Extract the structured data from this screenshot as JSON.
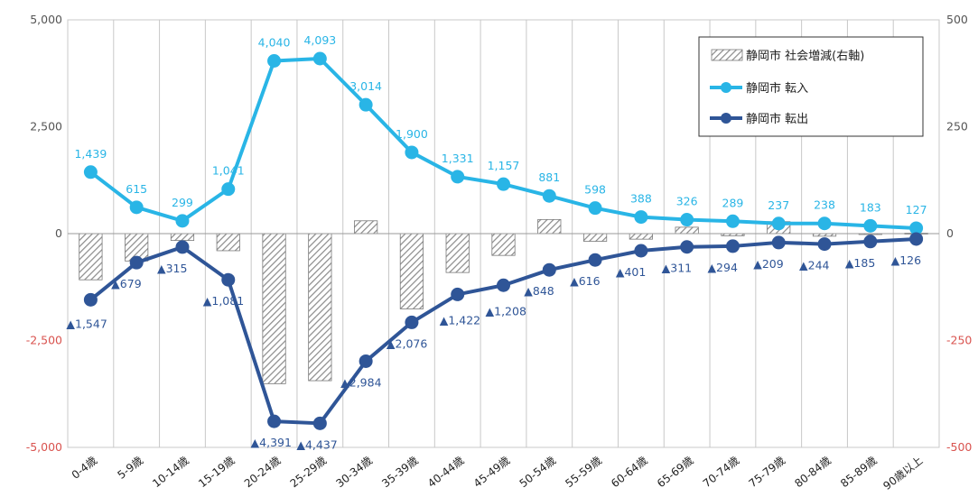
{
  "chart_data": {
    "type": "bar+line",
    "categories": [
      "0-4歳",
      "5-9歳",
      "10-14歳",
      "15-19歳",
      "20-24歳",
      "25-29歳",
      "30-34歳",
      "35-39歳",
      "40-44歳",
      "45-49歳",
      "50-54歳",
      "55-59歳",
      "60-64歳",
      "65-69歳",
      "70-74歳",
      "75-79歳",
      "80-84歳",
      "85-89歳",
      "90歳以上"
    ],
    "left_axis": {
      "ylim": [
        -5000,
        5000
      ],
      "ticks": [
        "5,000",
        "2,500",
        "0",
        "-2,500",
        "-5,000"
      ],
      "tick_values": [
        5000,
        2500,
        0,
        -2500,
        -5000
      ]
    },
    "right_axis": {
      "ylim": [
        -500,
        500
      ],
      "ticks": [
        "500",
        "250",
        "0",
        "-250",
        "-500"
      ],
      "tick_values": [
        500,
        250,
        0,
        -250,
        -500
      ]
    },
    "series": [
      {
        "name": "静岡市 社会増減(右軸)",
        "type": "bar",
        "axis": "right",
        "values": [
          -108,
          -64,
          -16,
          -40,
          -351,
          -344,
          30,
          -176,
          -91,
          -51,
          33,
          -18,
          -13,
          15,
          -5,
          28,
          -6,
          -2,
          1
        ]
      },
      {
        "name": "静岡市 転入",
        "type": "line",
        "axis": "left",
        "color": "#29b5e6",
        "values": [
          1439,
          615,
          299,
          1041,
          4040,
          4093,
          3014,
          1900,
          1331,
          1157,
          881,
          598,
          388,
          326,
          289,
          237,
          238,
          183,
          127
        ],
        "labels": [
          "1,439",
          "615",
          "299",
          "1,041",
          "4,040",
          "4,093",
          "3,014",
          "1,900",
          "1,331",
          "1,157",
          "881",
          "598",
          "388",
          "326",
          "289",
          "237",
          "238",
          "183",
          "127"
        ]
      },
      {
        "name": "静岡市 転出",
        "type": "line",
        "axis": "left",
        "color": "#2f5597",
        "values": [
          -1547,
          -679,
          -315,
          -1081,
          -4391,
          -4437,
          -2984,
          -2076,
          -1422,
          -1208,
          -848,
          -616,
          -401,
          -311,
          -294,
          -209,
          -244,
          -185,
          -126
        ],
        "labels": [
          "▲1,547",
          "▲679",
          "▲315",
          "▲1,081",
          "▲4,391",
          "▲4,437",
          "▲2,984",
          "▲2,076",
          "▲1,422",
          "▲1,208",
          "▲848",
          "▲616",
          "▲401",
          "▲311",
          "▲294",
          "▲209",
          "▲244",
          "▲185",
          "▲126"
        ]
      }
    ],
    "legend": {
      "position": "top-right",
      "items": [
        "静岡市 社会増減(右軸)",
        "静岡市 転入",
        "静岡市 転出"
      ]
    },
    "colors": {
      "inflow": "#29b5e6",
      "outflow": "#2f5597",
      "bar_hatch": "#888888",
      "negative_tick": "#d9534f"
    }
  }
}
